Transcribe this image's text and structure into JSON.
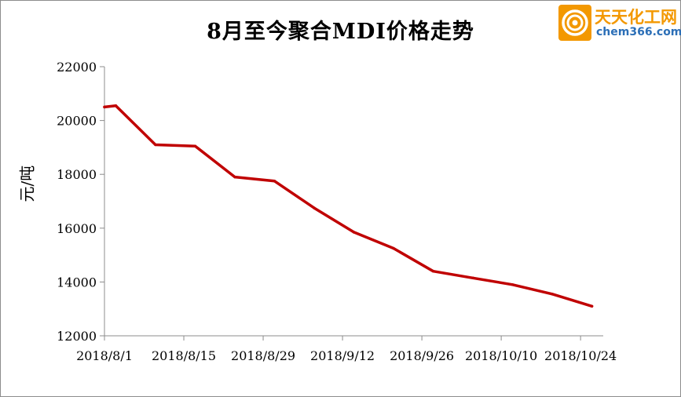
{
  "chart_data": {
    "type": "line",
    "title": "8月至今聚合MDI价格走势",
    "ylabel": "元/吨",
    "xlabel": "",
    "x_tick_labels": [
      "2018/8/1",
      "2018/8/15",
      "2018/8/29",
      "2018/9/12",
      "2018/9/26",
      "2018/10/10",
      "2018/10/24"
    ],
    "x_range": [
      "2018/8/1",
      "2018/10/28"
    ],
    "ylim": [
      12000,
      22000
    ],
    "y_ticks": [
      12000,
      14000,
      16000,
      18000,
      20000,
      22000
    ],
    "grid": false,
    "legend": "none",
    "series": [
      {
        "color": "#c00000",
        "points": [
          {
            "x": "2018/8/1",
            "y": 20500
          },
          {
            "x": "2018/8/3",
            "y": 20550
          },
          {
            "x": "2018/8/10",
            "y": 19100
          },
          {
            "x": "2018/8/17",
            "y": 19050
          },
          {
            "x": "2018/8/24",
            "y": 17900
          },
          {
            "x": "2018/8/31",
            "y": 17750
          },
          {
            "x": "2018/9/7",
            "y": 16750
          },
          {
            "x": "2018/9/14",
            "y": 15850
          },
          {
            "x": "2018/9/21",
            "y": 15250
          },
          {
            "x": "2018/9/28",
            "y": 14400
          },
          {
            "x": "2018/10/5",
            "y": 14150
          },
          {
            "x": "2018/10/12",
            "y": 13900
          },
          {
            "x": "2018/10/19",
            "y": 13550
          },
          {
            "x": "2018/10/26",
            "y": 13100
          }
        ]
      }
    ]
  },
  "logo": {
    "name_cn": "天天化工网",
    "name_en": "chem366.com",
    "colors": {
      "primary": "#f39800",
      "secondary": "#2c6fb7"
    }
  }
}
